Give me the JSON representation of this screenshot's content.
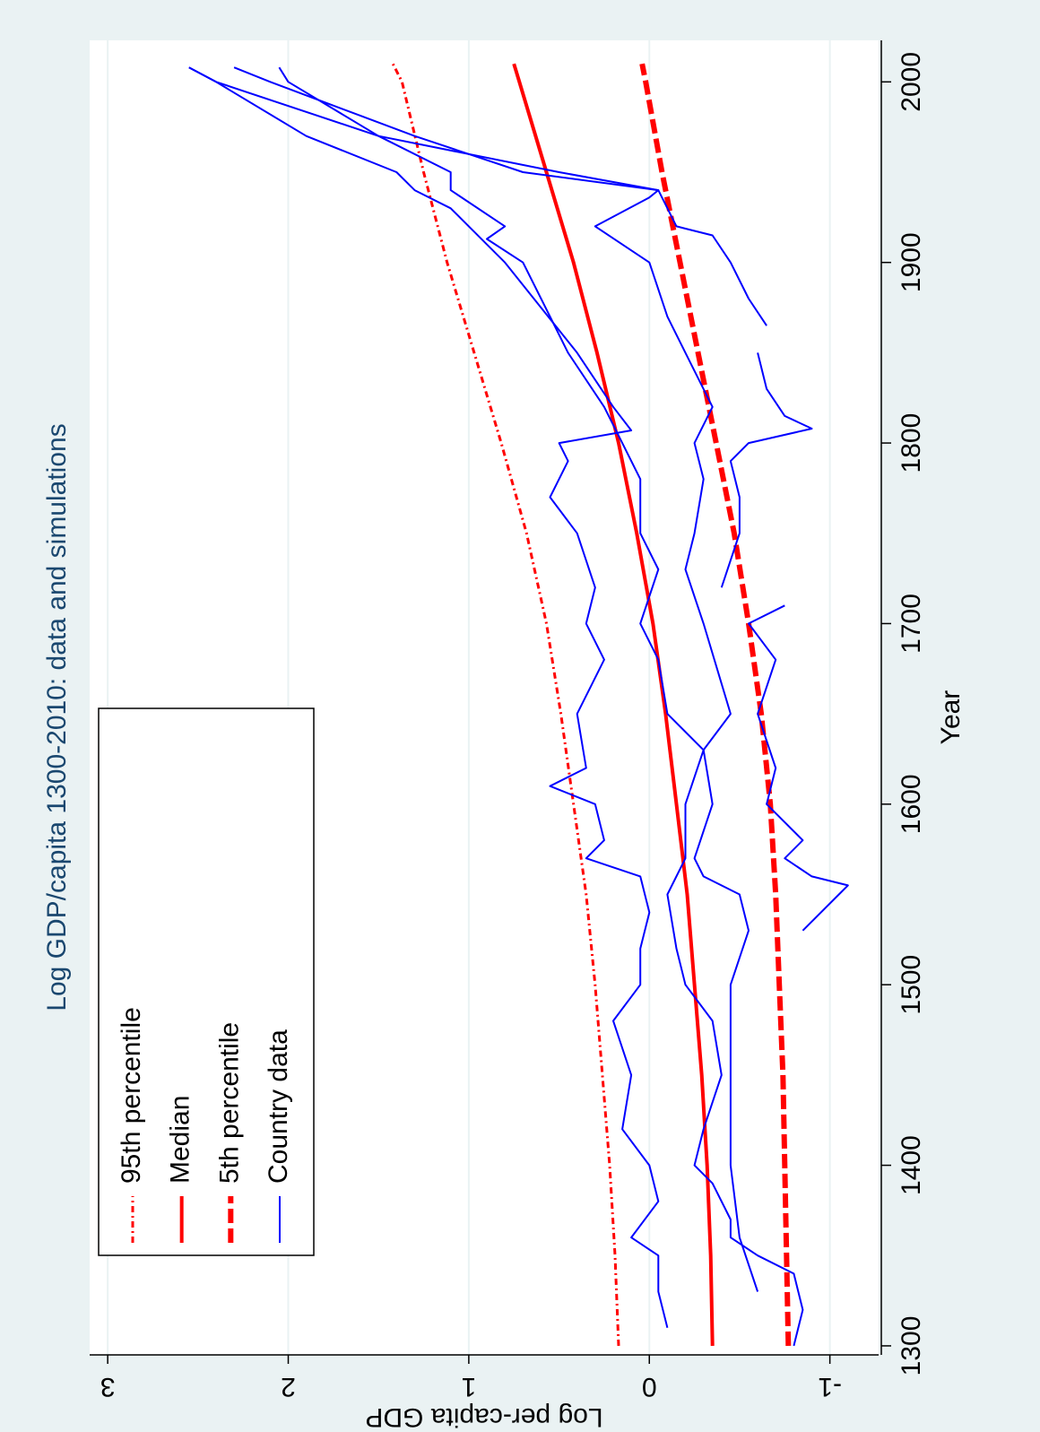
{
  "chart_data": {
    "type": "line",
    "title": "Log GDP/capita 1300-2010: data and simulations",
    "x_label": "Year",
    "y_label": "Log per-capita GDP",
    "xlim": [
      1295,
      2023
    ],
    "xticks": [
      1300,
      1400,
      1500,
      1600,
      1700,
      1800,
      1900,
      2000
    ],
    "ylim": [
      -1.27,
      3.1
    ],
    "yticks": [
      -1,
      0,
      1,
      2,
      3
    ],
    "grid": true,
    "legend": "top-left",
    "series": [
      {
        "name": "95th percentile",
        "color": "#ff0000",
        "style": "dash-dot",
        "x": [
          1300,
          1350,
          1400,
          1450,
          1500,
          1550,
          1600,
          1650,
          1700,
          1750,
          1800,
          1850,
          1900,
          1950,
          2000,
          2010
        ],
        "values": [
          0.17,
          0.19,
          0.22,
          0.26,
          0.3,
          0.35,
          0.42,
          0.49,
          0.57,
          0.68,
          0.82,
          0.97,
          1.12,
          1.25,
          1.37,
          1.42
        ]
      },
      {
        "name": "Median",
        "color": "#ff0000",
        "style": "solid-thick",
        "x": [
          1300,
          1350,
          1400,
          1450,
          1500,
          1550,
          1600,
          1650,
          1700,
          1750,
          1800,
          1850,
          1900,
          1950,
          2000,
          2010
        ],
        "values": [
          -0.35,
          -0.34,
          -0.32,
          -0.29,
          -0.25,
          -0.21,
          -0.15,
          -0.09,
          -0.02,
          0.07,
          0.17,
          0.29,
          0.42,
          0.57,
          0.72,
          0.75
        ]
      },
      {
        "name": "5th percentile",
        "color": "#ff0000",
        "style": "long-dash",
        "x": [
          1300,
          1350,
          1400,
          1450,
          1500,
          1550,
          1600,
          1650,
          1700,
          1750,
          1800,
          1850,
          1900,
          1950,
          2000,
          2010
        ],
        "values": [
          -0.77,
          -0.76,
          -0.75,
          -0.74,
          -0.72,
          -0.7,
          -0.67,
          -0.62,
          -0.55,
          -0.47,
          -0.37,
          -0.27,
          -0.17,
          -0.07,
          0.02,
          0.04
        ]
      },
      {
        "name": "Country data",
        "color": "#0000ff",
        "style": "solid-thin",
        "lines": [
          {
            "x": [
              1310,
              1330,
              1350,
              1360,
              1380,
              1400,
              1420,
              1450,
              1480,
              1500,
              1520,
              1540,
              1560,
              1570,
              1580,
              1600,
              1610,
              1620,
              1650,
              1680,
              1700,
              1720,
              1750,
              1770,
              1790,
              1800,
              1807,
              1820,
              1850,
              1900,
              1930,
              1940,
              1950,
              1970,
              2000,
              2008
            ],
            "values": [
              -0.1,
              -0.05,
              -0.05,
              0.1,
              -0.05,
              0.0,
              0.15,
              0.1,
              0.2,
              0.05,
              0.05,
              0.0,
              0.05,
              0.35,
              0.25,
              0.3,
              0.55,
              0.35,
              0.4,
              0.25,
              0.35,
              0.3,
              0.4,
              0.55,
              0.45,
              0.5,
              0.1,
              0.2,
              0.4,
              0.8,
              1.1,
              1.3,
              1.4,
              1.9,
              2.4,
              2.55
            ]
          },
          {
            "x": [
              1300,
              1320,
              1340,
              1350,
              1360,
              1370,
              1390,
              1400,
              1420,
              1450,
              1480,
              1500,
              1520,
              1550,
              1570,
              1600,
              1630,
              1650,
              1680,
              1700,
              1730,
              1750,
              1780,
              1800,
              1820,
              1850,
              1870,
              1900,
              1913,
              1920,
              1940,
              1950,
              1970,
              2000,
              2008
            ],
            "values": [
              -0.8,
              -0.85,
              -0.8,
              -0.6,
              -0.45,
              -0.45,
              -0.35,
              -0.25,
              -0.3,
              -0.4,
              -0.35,
              -0.2,
              -0.15,
              -0.1,
              -0.2,
              -0.2,
              -0.3,
              -0.1,
              -0.05,
              0.05,
              -0.05,
              0.05,
              0.05,
              0.15,
              0.25,
              0.45,
              0.55,
              0.7,
              0.9,
              0.8,
              1.1,
              1.1,
              1.5,
              2.0,
              2.05
            ]
          },
          {
            "x": [
              1330,
              1360,
              1400,
              1450,
              1500,
              1530,
              1550,
              1560,
              1570,
              1600,
              1630,
              1650,
              1700,
              1730,
              1750,
              1780,
              1800,
              1820,
              1850,
              1870,
              1900,
              1920,
              1936,
              1940,
              1950,
              1970,
              2000,
              2008
            ],
            "values": [
              -0.6,
              -0.5,
              -0.45,
              -0.45,
              -0.45,
              -0.55,
              -0.5,
              -0.3,
              -0.25,
              -0.35,
              -0.3,
              -0.45,
              -0.3,
              -0.2,
              -0.25,
              -0.3,
              -0.25,
              -0.35,
              -0.2,
              -0.1,
              0.0,
              0.3,
              0.0,
              -0.05,
              0.7,
              1.3,
              2.1,
              2.3
            ]
          },
          {
            "x": [
              1530,
              1550,
              1555,
              1560,
              1570,
              1580,
              1600,
              1620,
              1650,
              1680,
              1700,
              1710,
              1715,
              1720,
              1750,
              1770,
              1790,
              1800,
              1808,
              1815,
              1830,
              1850,
              1858,
              1865,
              1880,
              1900,
              1915,
              1920,
              1940,
              1950,
              1970,
              2000,
              2008
            ],
            "values": [
              -0.85,
              -1.05,
              -1.1,
              -0.9,
              -0.75,
              -0.85,
              -0.65,
              -0.7,
              -0.6,
              -0.7,
              -0.55,
              -0.75,
              null,
              -0.4,
              -0.5,
              -0.5,
              -0.45,
              -0.55,
              -0.9,
              -0.75,
              -0.65,
              -0.6,
              null,
              -0.65,
              -0.55,
              -0.45,
              -0.35,
              -0.15,
              -0.05,
              0.5,
              1.5,
              2.4,
              2.55
            ]
          }
        ]
      }
    ]
  }
}
